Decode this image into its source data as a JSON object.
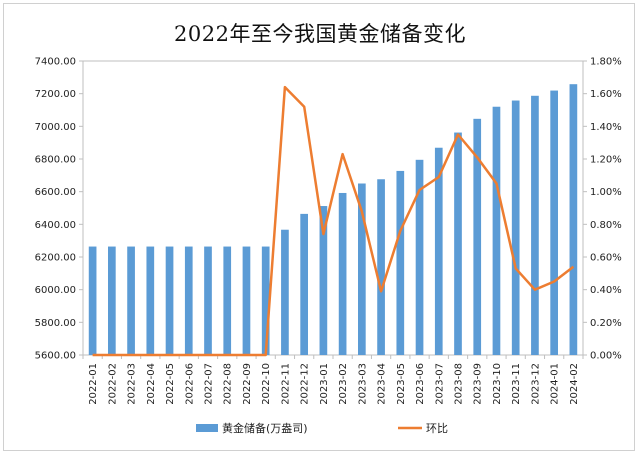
{
  "chart_data": {
    "type": "bar",
    "title": "2022年至今我国黄金储备变化",
    "categories": [
      "2022-01",
      "2022-02",
      "2022-03",
      "2022-04",
      "2022-05",
      "2022-06",
      "2022-07",
      "2022-08",
      "2022-09",
      "2022-10",
      "2022-11",
      "2022-12",
      "2023-01",
      "2023-02",
      "2023-03",
      "2023-04",
      "2023-05",
      "2023-06",
      "2023-07",
      "2023-08",
      "2023-09",
      "2023-10",
      "2023-11",
      "2023-12",
      "2024-01",
      "2024-02"
    ],
    "series": [
      {
        "name": "黄金储备(万盎司)",
        "type": "bar",
        "axis": "left",
        "color": "#5b9bd5",
        "values": [
          6264,
          6264,
          6264,
          6264,
          6264,
          6264,
          6264,
          6264,
          6264,
          6264,
          6367,
          6464,
          6512,
          6592,
          6650,
          6676,
          6727,
          6795,
          6869,
          6962,
          7046,
          7120,
          7158,
          7187,
          7219,
          7258
        ]
      },
      {
        "name": "环比",
        "type": "line",
        "axis": "right",
        "color": "#ed7d31",
        "values": [
          0.0,
          0.0,
          0.0,
          0.0,
          0.0,
          0.0,
          0.0,
          0.0,
          0.0,
          0.0,
          1.64,
          1.52,
          0.74,
          1.23,
          0.88,
          0.39,
          0.76,
          1.01,
          1.09,
          1.35,
          1.21,
          1.05,
          0.53,
          0.4,
          0.45,
          0.54
        ]
      }
    ],
    "left_axis": {
      "min": 5600,
      "max": 7400,
      "step": 200,
      "tick_labels": [
        "5600.00",
        "5800.00",
        "6000.00",
        "6200.00",
        "6400.00",
        "6600.00",
        "6800.00",
        "7000.00",
        "7200.00",
        "7400.00"
      ]
    },
    "right_axis": {
      "min": 0,
      "max": 1.8,
      "step": 0.2,
      "tick_labels": [
        "0.00%",
        "0.20%",
        "0.40%",
        "0.60%",
        "0.80%",
        "1.00%",
        "1.20%",
        "1.40%",
        "1.60%",
        "1.80%"
      ]
    },
    "grid": false,
    "legend_position": "bottom"
  }
}
